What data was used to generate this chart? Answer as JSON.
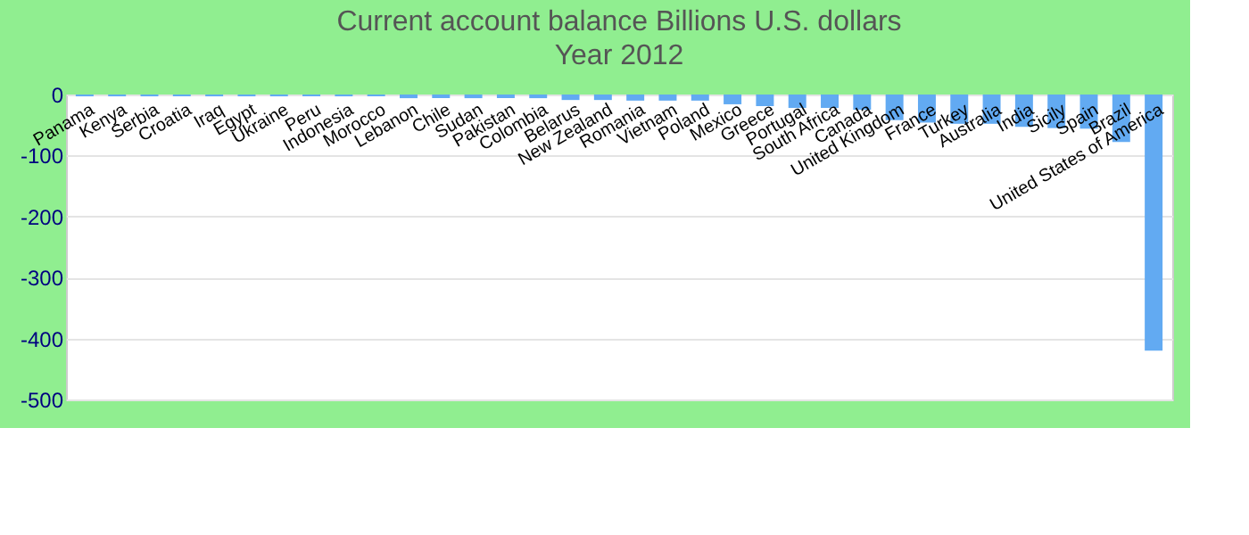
{
  "chart_data": {
    "type": "bar",
    "title": "Current account balance Billions U.S. dollars",
    "subtitle": "Year 2012",
    "categories": [
      "Panama",
      "Kenya",
      "Serbia",
      "Croatia",
      "Iraq",
      "Egypt",
      "Ukraine",
      "Peru",
      "Indonesia",
      "Morocco",
      "Lebanon",
      "Chile",
      "Sudan",
      "Pakistan",
      "Colombia",
      "Belarus",
      "New Zealand",
      "Romania",
      "Vietnam",
      "Poland",
      "Mexico",
      "Greece",
      "Portugal",
      "South Africa",
      "Canada",
      "United Kingdom",
      "France",
      "Turkey",
      "Australia",
      "India",
      "Sicily",
      "Spain",
      "Brazil",
      "United States of America"
    ],
    "values": [
      -3,
      -3,
      -3,
      -3,
      -3,
      -3,
      -3,
      -3,
      -3,
      -3,
      -6,
      -6,
      -6,
      -6,
      -6,
      -9,
      -9,
      -10,
      -10,
      -10,
      -16,
      -19,
      -22,
      -22,
      -25,
      -42,
      -46,
      -48,
      -48,
      -53,
      -55,
      -56,
      -78,
      -420
    ],
    "color": "#62aaf2",
    "ylim": [
      -500,
      0
    ],
    "yticks": [
      -500,
      -400,
      -300,
      -200,
      -100,
      0
    ],
    "grid": "y"
  }
}
